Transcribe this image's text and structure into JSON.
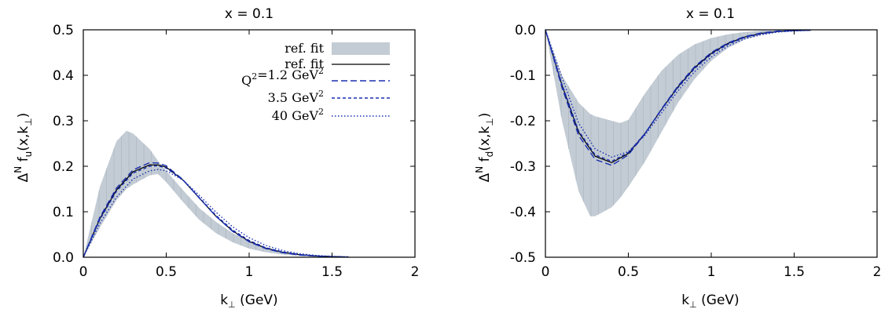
{
  "chart_data": [
    {
      "type": "line",
      "title": "x = 0.1",
      "xlabel": "k⊥ (GeV)",
      "ylabel": "ΔN fu(x,k⊥)",
      "xlim": [
        0,
        2
      ],
      "ylim": [
        0,
        0.5
      ],
      "x_ticks": [
        "0",
        "0.5",
        "1",
        "1.5",
        "2"
      ],
      "y_ticks": [
        "0.0",
        "0.1",
        "0.2",
        "0.3",
        "0.4",
        "0.5"
      ],
      "grid": false,
      "legend_position": "top-right",
      "legend": [
        "ref. fit",
        "ref. fit",
        "Q²=1.2 GeV²",
        "3.5 GeV²",
        "40 GeV²"
      ],
      "band": {
        "name": "ref. fit",
        "color": "#c3ccd4",
        "x": [
          0,
          0.1,
          0.2,
          0.26,
          0.3,
          0.4,
          0.45,
          0.5,
          0.6,
          0.7,
          0.8,
          0.9,
          1.0,
          1.1,
          1.2,
          1.3,
          1.4,
          1.5,
          1.6,
          1.7
        ],
        "upper": [
          0,
          0.155,
          0.255,
          0.278,
          0.272,
          0.238,
          0.212,
          0.19,
          0.148,
          0.108,
          0.078,
          0.053,
          0.035,
          0.022,
          0.013,
          0.007,
          0.004,
          0.002,
          0.001,
          0.0
        ],
        "lower": [
          0,
          0.065,
          0.125,
          0.15,
          0.16,
          0.18,
          0.183,
          0.165,
          0.122,
          0.082,
          0.053,
          0.033,
          0.019,
          0.011,
          0.006,
          0.003,
          0.001,
          0.0005,
          0.0,
          0.0
        ]
      },
      "series": [
        {
          "name": "ref. fit",
          "style": "solid",
          "color": "#000000",
          "x": [
            0,
            0.1,
            0.2,
            0.3,
            0.4,
            0.45,
            0.5,
            0.6,
            0.7,
            0.8,
            0.9,
            1.0,
            1.1,
            1.2,
            1.3,
            1.4,
            1.5,
            1.6
          ],
          "values": [
            0,
            0.085,
            0.148,
            0.188,
            0.203,
            0.203,
            0.198,
            0.17,
            0.13,
            0.09,
            0.058,
            0.035,
            0.02,
            0.011,
            0.006,
            0.003,
            0.0015,
            0.0005
          ]
        },
        {
          "name": "Q²=1.2 GeV²",
          "style": "dashed",
          "color": "#1a2fb0",
          "x": [
            0,
            0.1,
            0.2,
            0.3,
            0.4,
            0.45,
            0.5,
            0.6,
            0.7,
            0.8,
            0.9,
            1.0,
            1.1,
            1.2,
            1.3,
            1.4,
            1.5,
            1.6
          ],
          "values": [
            0,
            0.088,
            0.152,
            0.192,
            0.208,
            0.207,
            0.201,
            0.171,
            0.13,
            0.09,
            0.057,
            0.034,
            0.019,
            0.01,
            0.005,
            0.0025,
            0.001,
            0.0005
          ]
        },
        {
          "name": "3.5 GeV²",
          "style": "short-dashed",
          "color": "#1a2fb0",
          "x": [
            0,
            0.1,
            0.2,
            0.3,
            0.4,
            0.45,
            0.5,
            0.6,
            0.7,
            0.8,
            0.9,
            1.0,
            1.1,
            1.2,
            1.3,
            1.4,
            1.5,
            1.6
          ],
          "values": [
            0,
            0.083,
            0.145,
            0.185,
            0.2,
            0.201,
            0.196,
            0.17,
            0.131,
            0.092,
            0.06,
            0.037,
            0.021,
            0.012,
            0.006,
            0.003,
            0.0015,
            0.0005
          ]
        },
        {
          "name": "40 GeV²",
          "style": "dotted",
          "color": "#1a2fb0",
          "x": [
            0,
            0.1,
            0.2,
            0.3,
            0.4,
            0.45,
            0.5,
            0.6,
            0.7,
            0.8,
            0.9,
            1.0,
            1.1,
            1.2,
            1.3,
            1.4,
            1.5,
            1.6
          ],
          "values": [
            0,
            0.074,
            0.132,
            0.172,
            0.19,
            0.193,
            0.19,
            0.17,
            0.136,
            0.099,
            0.067,
            0.043,
            0.026,
            0.015,
            0.008,
            0.004,
            0.002,
            0.001
          ]
        }
      ]
    },
    {
      "type": "line",
      "title": "x = 0.1",
      "xlabel": "k⊥ (GeV)",
      "ylabel": "ΔN fd(x,k⊥)",
      "xlim": [
        0,
        2
      ],
      "ylim": [
        -0.5,
        0
      ],
      "x_ticks": [
        "0",
        "0.5",
        "1",
        "1.5",
        "2"
      ],
      "y_ticks": [
        "0.0",
        "-0.1",
        "-0.2",
        "-0.3",
        "-0.4",
        "-0.5"
      ],
      "grid": false,
      "band": {
        "name": "ref. fit",
        "color": "#c3ccd4",
        "x": [
          0,
          0.1,
          0.2,
          0.27,
          0.3,
          0.4,
          0.45,
          0.5,
          0.6,
          0.7,
          0.8,
          0.9,
          1.0,
          1.1,
          1.2,
          1.3,
          1.4,
          1.5,
          1.6,
          1.7
        ],
        "upper": [
          0,
          -0.1,
          -0.16,
          -0.185,
          -0.19,
          -0.2,
          -0.205,
          -0.198,
          -0.14,
          -0.09,
          -0.055,
          -0.032,
          -0.018,
          -0.01,
          -0.005,
          -0.002,
          -0.001,
          0.0,
          0.0,
          0.0
        ],
        "lower": [
          0,
          -0.2,
          -0.355,
          -0.41,
          -0.41,
          -0.39,
          -0.37,
          -0.345,
          -0.29,
          -0.225,
          -0.16,
          -0.108,
          -0.068,
          -0.04,
          -0.022,
          -0.011,
          -0.005,
          -0.002,
          -0.001,
          0.0
        ]
      },
      "series": [
        {
          "name": "ref. fit",
          "style": "solid",
          "color": "#000000",
          "x": [
            0,
            0.1,
            0.2,
            0.3,
            0.4,
            0.5,
            0.6,
            0.7,
            0.8,
            0.9,
            1.0,
            1.1,
            1.2,
            1.3,
            1.4,
            1.5,
            1.6
          ],
          "values": [
            0,
            -0.122,
            -0.225,
            -0.278,
            -0.292,
            -0.272,
            -0.228,
            -0.175,
            -0.125,
            -0.083,
            -0.052,
            -0.03,
            -0.016,
            -0.008,
            -0.004,
            -0.002,
            -0.001
          ]
        },
        {
          "name": "Q²=1.2 GeV²",
          "style": "dashed",
          "color": "#1a2fb0",
          "x": [
            0,
            0.1,
            0.2,
            0.3,
            0.4,
            0.5,
            0.6,
            0.7,
            0.8,
            0.9,
            1.0,
            1.1,
            1.2,
            1.3,
            1.4,
            1.5,
            1.6
          ],
          "values": [
            0,
            -0.127,
            -0.232,
            -0.285,
            -0.298,
            -0.275,
            -0.229,
            -0.174,
            -0.123,
            -0.081,
            -0.05,
            -0.029,
            -0.015,
            -0.007,
            -0.003,
            -0.0015,
            -0.0005
          ]
        },
        {
          "name": "3.5 GeV²",
          "style": "short-dashed",
          "color": "#1a2fb0",
          "x": [
            0,
            0.1,
            0.2,
            0.3,
            0.4,
            0.5,
            0.6,
            0.7,
            0.8,
            0.9,
            1.0,
            1.1,
            1.2,
            1.3,
            1.4,
            1.5,
            1.6
          ],
          "values": [
            0,
            -0.12,
            -0.222,
            -0.275,
            -0.289,
            -0.27,
            -0.228,
            -0.176,
            -0.127,
            -0.085,
            -0.054,
            -0.032,
            -0.017,
            -0.009,
            -0.004,
            -0.002,
            -0.001
          ]
        },
        {
          "name": "40 GeV²",
          "style": "dotted",
          "color": "#1a2fb0",
          "x": [
            0,
            0.1,
            0.2,
            0.3,
            0.4,
            0.5,
            0.6,
            0.7,
            0.8,
            0.9,
            1.0,
            1.1,
            1.2,
            1.3,
            1.4,
            1.5,
            1.6
          ],
          "values": [
            0,
            -0.105,
            -0.205,
            -0.262,
            -0.28,
            -0.268,
            -0.232,
            -0.183,
            -0.134,
            -0.092,
            -0.06,
            -0.036,
            -0.02,
            -0.011,
            -0.005,
            -0.0025,
            -0.001
          ]
        }
      ]
    }
  ]
}
